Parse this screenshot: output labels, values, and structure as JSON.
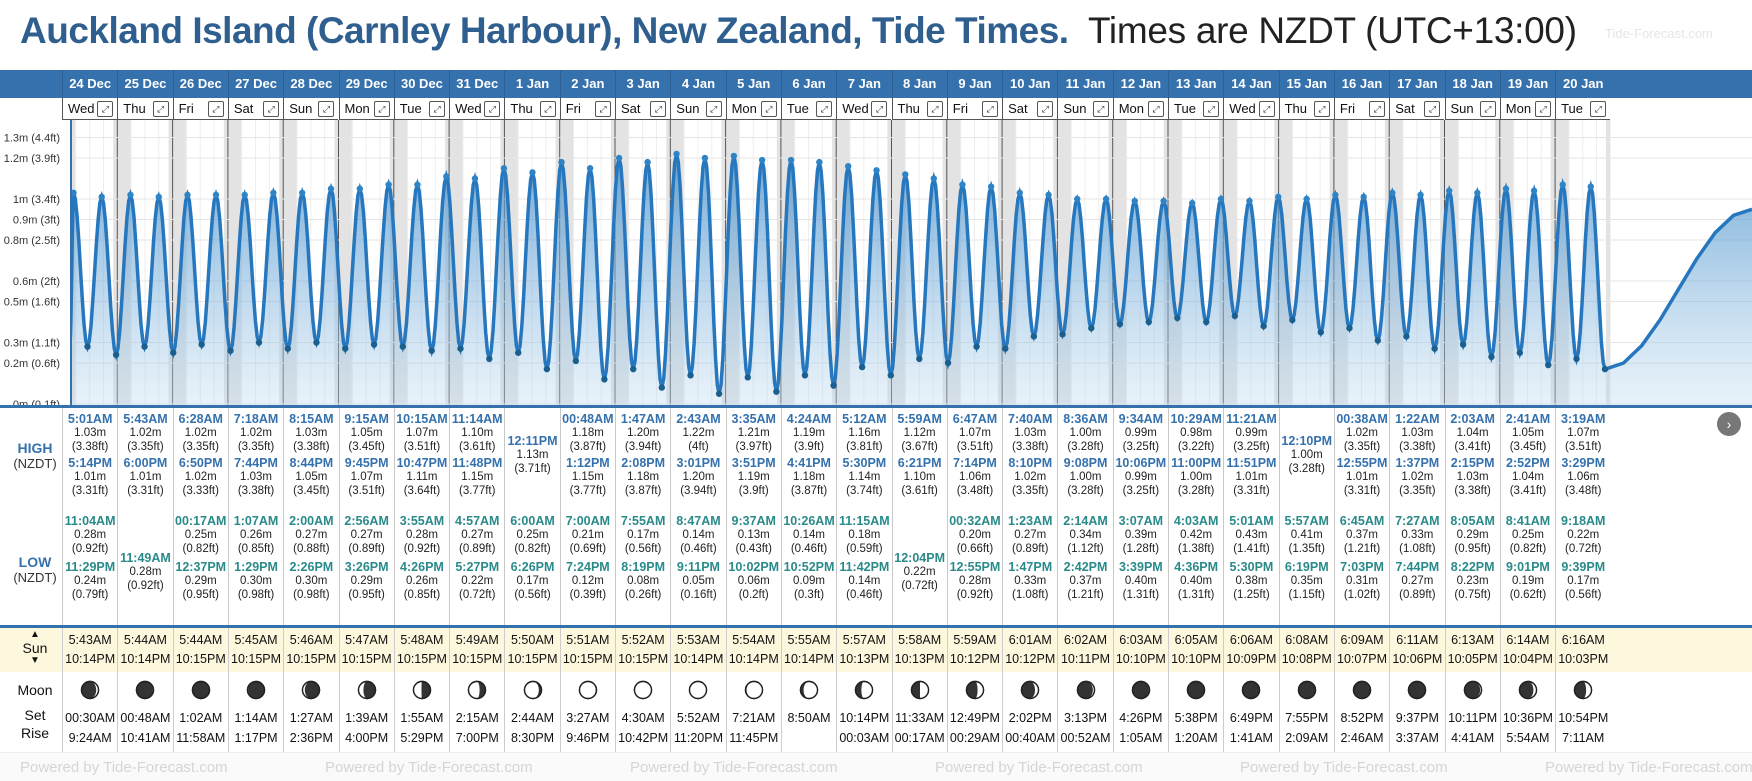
{
  "title": {
    "bold": "Auckland Island (Carnley Harbour), New Zealand, Tide Times.",
    "light": "Times are NZDT (UTC+13:00)",
    "watermark": "Tide-Forecast.com"
  },
  "y_axis_labels": [
    "1.3m (4.4ft)",
    "1.2m (3.9ft)",
    "1m (3.4ft)",
    "0.9m (3ft)",
    "0.8m (2.5ft)",
    "0.6m (2ft)",
    "0.5m (1.6ft)",
    "0.3m (1.1ft)",
    "0.2m (0.6ft)",
    "0m (0.1ft)"
  ],
  "dates": [
    "24 Dec",
    "25 Dec",
    "26 Dec",
    "27 Dec",
    "28 Dec",
    "29 Dec",
    "30 Dec",
    "31 Dec",
    "1 Jan",
    "2 Jan",
    "3 Jan",
    "4 Jan",
    "5 Jan",
    "6 Jan",
    "7 Jan",
    "8 Jan",
    "9 Jan",
    "10 Jan",
    "11 Jan",
    "12 Jan",
    "13 Jan",
    "14 Jan",
    "15 Jan",
    "16 Jan",
    "17 Jan",
    "18 Jan",
    "19 Jan",
    "20 Jan"
  ],
  "weekdays": [
    "Wed",
    "Thu",
    "Fri",
    "Sat",
    "Sun",
    "Mon",
    "Tue",
    "Wed",
    "Thu",
    "Fri",
    "Sat",
    "Sun",
    "Mon",
    "Tue",
    "Wed",
    "Thu",
    "Fri",
    "Sat",
    "Sun",
    "Mon",
    "Tue",
    "Wed",
    "Thu",
    "Fri",
    "Sat",
    "Sun",
    "Mon",
    "Tue"
  ],
  "expand_icon": "expand-icon",
  "row_labels": {
    "high": "HIGH",
    "low": "LOW",
    "tz": "(NZDT)",
    "sun": "Sun",
    "moon": "Moon",
    "set": "Set",
    "rise": "Rise"
  },
  "high_tides": [
    [
      [
        "5:01AM",
        "1.03m",
        "(3.38ft)"
      ],
      [
        "5:14PM",
        "1.01m",
        "(3.31ft)"
      ]
    ],
    [
      [
        "5:43AM",
        "1.02m",
        "(3.35ft)"
      ],
      [
        "6:00PM",
        "1.01m",
        "(3.31ft)"
      ]
    ],
    [
      [
        "6:28AM",
        "1.02m",
        "(3.35ft)"
      ],
      [
        "6:50PM",
        "1.02m",
        "(3.33ft)"
      ]
    ],
    [
      [
        "7:18AM",
        "1.02m",
        "(3.35ft)"
      ],
      [
        "7:44PM",
        "1.03m",
        "(3.38ft)"
      ]
    ],
    [
      [
        "8:15AM",
        "1.03m",
        "(3.38ft)"
      ],
      [
        "8:44PM",
        "1.05m",
        "(3.45ft)"
      ]
    ],
    [
      [
        "9:15AM",
        "1.05m",
        "(3.45ft)"
      ],
      [
        "9:45PM",
        "1.07m",
        "(3.51ft)"
      ]
    ],
    [
      [
        "10:15AM",
        "1.07m",
        "(3.51ft)"
      ],
      [
        "10:47PM",
        "1.11m",
        "(3.64ft)"
      ]
    ],
    [
      [
        "11:14AM",
        "1.10m",
        "(3.61ft)"
      ],
      [
        "11:48PM",
        "1.15m",
        "(3.77ft)"
      ]
    ],
    [
      [
        "12:11PM",
        "1.13m",
        "(3.71ft)"
      ]
    ],
    [
      [
        "00:48AM",
        "1.18m",
        "(3.87ft)"
      ],
      [
        "1:12PM",
        "1.15m",
        "(3.77ft)"
      ]
    ],
    [
      [
        "1:47AM",
        "1.20m",
        "(3.94ft)"
      ],
      [
        "2:08PM",
        "1.18m",
        "(3.87ft)"
      ]
    ],
    [
      [
        "2:43AM",
        "1.22m",
        "(4ft)"
      ],
      [
        "3:01PM",
        "1.20m",
        "(3.94ft)"
      ]
    ],
    [
      [
        "3:35AM",
        "1.21m",
        "(3.97ft)"
      ],
      [
        "3:51PM",
        "1.19m",
        "(3.9ft)"
      ]
    ],
    [
      [
        "4:24AM",
        "1.19m",
        "(3.9ft)"
      ],
      [
        "4:41PM",
        "1.18m",
        "(3.87ft)"
      ]
    ],
    [
      [
        "5:12AM",
        "1.16m",
        "(3.81ft)"
      ],
      [
        "5:30PM",
        "1.14m",
        "(3.74ft)"
      ]
    ],
    [
      [
        "5:59AM",
        "1.12m",
        "(3.67ft)"
      ],
      [
        "6:21PM",
        "1.10m",
        "(3.61ft)"
      ]
    ],
    [
      [
        "6:47AM",
        "1.07m",
        "(3.51ft)"
      ],
      [
        "7:14PM",
        "1.06m",
        "(3.48ft)"
      ]
    ],
    [
      [
        "7:40AM",
        "1.03m",
        "(3.38ft)"
      ],
      [
        "8:10PM",
        "1.02m",
        "(3.35ft)"
      ]
    ],
    [
      [
        "8:36AM",
        "1.00m",
        "(3.28ft)"
      ],
      [
        "9:08PM",
        "1.00m",
        "(3.28ft)"
      ]
    ],
    [
      [
        "9:34AM",
        "0.99m",
        "(3.25ft)"
      ],
      [
        "10:06PM",
        "0.99m",
        "(3.25ft)"
      ]
    ],
    [
      [
        "10:29AM",
        "0.98m",
        "(3.22ft)"
      ],
      [
        "11:00PM",
        "1.00m",
        "(3.28ft)"
      ]
    ],
    [
      [
        "11:21AM",
        "0.99m",
        "(3.25ft)"
      ],
      [
        "11:51PM",
        "1.01m",
        "(3.31ft)"
      ]
    ],
    [
      [
        "12:10PM",
        "1.00m",
        "(3.28ft)"
      ]
    ],
    [
      [
        "00:38AM",
        "1.02m",
        "(3.35ft)"
      ],
      [
        "12:55PM",
        "1.01m",
        "(3.31ft)"
      ]
    ],
    [
      [
        "1:22AM",
        "1.03m",
        "(3.38ft)"
      ],
      [
        "1:37PM",
        "1.02m",
        "(3.35ft)"
      ]
    ],
    [
      [
        "2:03AM",
        "1.04m",
        "(3.41ft)"
      ],
      [
        "2:15PM",
        "1.03m",
        "(3.38ft)"
      ]
    ],
    [
      [
        "2:41AM",
        "1.05m",
        "(3.45ft)"
      ],
      [
        "2:52PM",
        "1.04m",
        "(3.41ft)"
      ]
    ],
    [
      [
        "3:19AM",
        "1.07m",
        "(3.51ft)"
      ],
      [
        "3:29PM",
        "1.06m",
        "(3.48ft)"
      ]
    ]
  ],
  "low_tides": [
    [
      [
        "11:04AM",
        "0.28m",
        "(0.92ft)"
      ],
      [
        "11:29PM",
        "0.24m",
        "(0.79ft)"
      ]
    ],
    [
      [
        "11:49AM",
        "0.28m",
        "(0.92ft)"
      ]
    ],
    [
      [
        "00:17AM",
        "0.25m",
        "(0.82ft)"
      ],
      [
        "12:37PM",
        "0.29m",
        "(0.95ft)"
      ]
    ],
    [
      [
        "1:07AM",
        "0.26m",
        "(0.85ft)"
      ],
      [
        "1:29PM",
        "0.30m",
        "(0.98ft)"
      ]
    ],
    [
      [
        "2:00AM",
        "0.27m",
        "(0.88ft)"
      ],
      [
        "2:26PM",
        "0.30m",
        "(0.98ft)"
      ]
    ],
    [
      [
        "2:56AM",
        "0.27m",
        "(0.89ft)"
      ],
      [
        "3:26PM",
        "0.29m",
        "(0.95ft)"
      ]
    ],
    [
      [
        "3:55AM",
        "0.28m",
        "(0.92ft)"
      ],
      [
        "4:26PM",
        "0.26m",
        "(0.85ft)"
      ]
    ],
    [
      [
        "4:57AM",
        "0.27m",
        "(0.89ft)"
      ],
      [
        "5:27PM",
        "0.22m",
        "(0.72ft)"
      ]
    ],
    [
      [
        "6:00AM",
        "0.25m",
        "(0.82ft)"
      ],
      [
        "6:26PM",
        "0.17m",
        "(0.56ft)"
      ]
    ],
    [
      [
        "7:00AM",
        "0.21m",
        "(0.69ft)"
      ],
      [
        "7:24PM",
        "0.12m",
        "(0.39ft)"
      ]
    ],
    [
      [
        "7:55AM",
        "0.17m",
        "(0.56ft)"
      ],
      [
        "8:19PM",
        "0.08m",
        "(0.26ft)"
      ]
    ],
    [
      [
        "8:47AM",
        "0.14m",
        "(0.46ft)"
      ],
      [
        "9:11PM",
        "0.05m",
        "(0.16ft)"
      ]
    ],
    [
      [
        "9:37AM",
        "0.13m",
        "(0.43ft)"
      ],
      [
        "10:02PM",
        "0.06m",
        "(0.2ft)"
      ]
    ],
    [
      [
        "10:26AM",
        "0.14m",
        "(0.46ft)"
      ],
      [
        "10:52PM",
        "0.09m",
        "(0.3ft)"
      ]
    ],
    [
      [
        "11:15AM",
        "0.18m",
        "(0.59ft)"
      ],
      [
        "11:42PM",
        "0.14m",
        "(0.46ft)"
      ]
    ],
    [
      [
        "12:04PM",
        "0.22m",
        "(0.72ft)"
      ]
    ],
    [
      [
        "00:32AM",
        "0.20m",
        "(0.66ft)"
      ],
      [
        "12:55PM",
        "0.28m",
        "(0.92ft)"
      ]
    ],
    [
      [
        "1:23AM",
        "0.27m",
        "(0.89ft)"
      ],
      [
        "1:47PM",
        "0.33m",
        "(1.08ft)"
      ]
    ],
    [
      [
        "2:14AM",
        "0.34m",
        "(1.12ft)"
      ],
      [
        "2:42PM",
        "0.37m",
        "(1.21ft)"
      ]
    ],
    [
      [
        "3:07AM",
        "0.39m",
        "(1.28ft)"
      ],
      [
        "3:39PM",
        "0.40m",
        "(1.31ft)"
      ]
    ],
    [
      [
        "4:03AM",
        "0.42m",
        "(1.38ft)"
      ],
      [
        "4:36PM",
        "0.40m",
        "(1.31ft)"
      ]
    ],
    [
      [
        "5:01AM",
        "0.43m",
        "(1.41ft)"
      ],
      [
        "5:30PM",
        "0.38m",
        "(1.25ft)"
      ]
    ],
    [
      [
        "5:57AM",
        "0.41m",
        "(1.35ft)"
      ],
      [
        "6:19PM",
        "0.35m",
        "(1.15ft)"
      ]
    ],
    [
      [
        "6:45AM",
        "0.37m",
        "(1.21ft)"
      ],
      [
        "7:03PM",
        "0.31m",
        "(1.02ft)"
      ]
    ],
    [
      [
        "7:27AM",
        "0.33m",
        "(1.08ft)"
      ],
      [
        "7:44PM",
        "0.27m",
        "(0.89ft)"
      ]
    ],
    [
      [
        "8:05AM",
        "0.29m",
        "(0.95ft)"
      ],
      [
        "8:22PM",
        "0.23m",
        "(0.75ft)"
      ]
    ],
    [
      [
        "8:41AM",
        "0.25m",
        "(0.82ft)"
      ],
      [
        "9:01PM",
        "0.19m",
        "(0.62ft)"
      ]
    ],
    [
      [
        "9:18AM",
        "0.22m",
        "(0.72ft)"
      ],
      [
        "9:39PM",
        "0.17m",
        "(0.56ft)"
      ]
    ]
  ],
  "sunrise": [
    "5:43AM",
    "5:44AM",
    "5:44AM",
    "5:45AM",
    "5:46AM",
    "5:47AM",
    "5:48AM",
    "5:49AM",
    "5:50AM",
    "5:51AM",
    "5:52AM",
    "5:53AM",
    "5:54AM",
    "5:55AM",
    "5:57AM",
    "5:58AM",
    "5:59AM",
    "6:01AM",
    "6:02AM",
    "6:03AM",
    "6:05AM",
    "6:06AM",
    "6:08AM",
    "6:09AM",
    "6:11AM",
    "6:13AM",
    "6:14AM",
    "6:16AM"
  ],
  "sunset": [
    "10:14PM",
    "10:14PM",
    "10:15PM",
    "10:15PM",
    "10:15PM",
    "10:15PM",
    "10:15PM",
    "10:15PM",
    "10:15PM",
    "10:15PM",
    "10:15PM",
    "10:14PM",
    "10:14PM",
    "10:14PM",
    "10:13PM",
    "10:13PM",
    "10:12PM",
    "10:12PM",
    "10:11PM",
    "10:10PM",
    "10:10PM",
    "10:09PM",
    "10:08PM",
    "10:07PM",
    "10:06PM",
    "10:05PM",
    "10:04PM",
    "10:03PM"
  ],
  "moon_phase": [
    0.12,
    0.06,
    0.0,
    0.94,
    0.88,
    0.82,
    0.76,
    0.7,
    0.63,
    0.57,
    0.52,
    0.48,
    0.42,
    0.36,
    0.3,
    0.25,
    0.2,
    0.15,
    0.1,
    0.06,
    0.03,
    0.01,
    0.0,
    0.02,
    0.05,
    0.09,
    0.14,
    0.19
  ],
  "moon_set": [
    "00:30AM",
    "00:48AM",
    "1:02AM",
    "1:14AM",
    "1:27AM",
    "1:39AM",
    "1:55AM",
    "2:15AM",
    "2:44AM",
    "3:27AM",
    "4:30AM",
    "5:52AM",
    "7:21AM",
    "8:50AM",
    "10:14PM",
    "11:33AM",
    "12:49PM",
    "2:02PM",
    "3:13PM",
    "4:26PM",
    "5:38PM",
    "6:49PM",
    "7:55PM",
    "8:52PM",
    "9:37PM",
    "10:11PM",
    "10:36PM",
    "10:54PM"
  ],
  "moon_rise": [
    "9:24AM",
    "10:41AM",
    "11:58AM",
    "1:17PM",
    "2:36PM",
    "4:00PM",
    "5:29PM",
    "7:00PM",
    "8:30PM",
    "9:46PM",
    "10:42PM",
    "11:20PM",
    "11:45PM",
    "",
    "00:03AM",
    "00:17AM",
    "00:29AM",
    "00:40AM",
    "00:52AM",
    "1:05AM",
    "1:20AM",
    "1:41AM",
    "2:09AM",
    "2:46AM",
    "3:37AM",
    "4:41AM",
    "5:54AM",
    "7:11AM"
  ],
  "footer_watermark": "Powered by Tide-Forecast.com",
  "colors": {
    "header_blue": "#3571ad",
    "title_blue": "#2f5f8f",
    "tide_line": "#2677bd",
    "sun_bg": "#fdf8dd"
  }
}
